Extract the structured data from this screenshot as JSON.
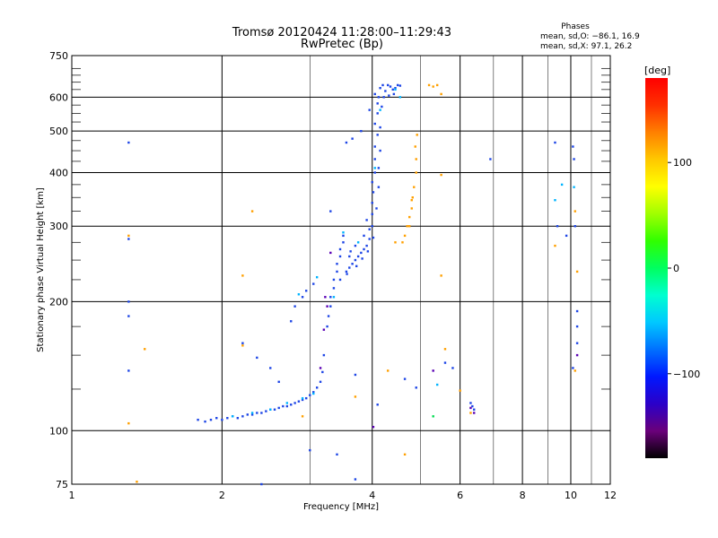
{
  "chart_data": {
    "type": "scatter",
    "title": "Tromsø 20120424 11:28:00–11:29:43",
    "subtitle": "RwPretec (Bp)",
    "xlabel": "Frequency [MHz]",
    "ylabel": "Stationary phase Virtual Height [km]",
    "x_scale": "log",
    "y_scale": "log",
    "xlim": [
      1,
      12
    ],
    "ylim": [
      75,
      750
    ],
    "x_ticks": [
      1,
      2,
      4,
      6,
      8,
      10,
      12
    ],
    "x_tick_labels": [
      "1",
      "2",
      "4",
      "6",
      "8",
      "10",
      "12"
    ],
    "x_grid": [
      2,
      4,
      6,
      8,
      10
    ],
    "x_minor_grid": [
      3,
      5,
      7,
      9,
      11
    ],
    "y_ticks": [
      75,
      100,
      200,
      300,
      400,
      500,
      600,
      750
    ],
    "y_tick_labels": [
      "75",
      "100",
      "200",
      "300",
      "400",
      "500",
      "600",
      "750"
    ],
    "y_grid": [
      100,
      200,
      300,
      400,
      500,
      600
    ],
    "y_minor_grid": [
      125,
      150,
      175,
      225,
      250,
      275,
      325,
      350,
      375,
      425,
      450,
      475,
      525,
      550,
      575,
      625,
      650,
      675,
      700
    ],
    "grid": true,
    "stats": {
      "heading": "Phases",
      "line1": "mean, sd,O: −86.1, 16.9",
      "line2": "mean, sd,X:  97.1, 26.2"
    },
    "colorbar": {
      "label": "[deg]",
      "range": [
        -180,
        180
      ],
      "ticks": [
        100,
        0,
        -100
      ],
      "tick_labels": [
        "100",
        "0",
        "−100"
      ],
      "colors": [
        "#000000",
        "#6a007a",
        "#2b00c8",
        "#0018ff",
        "#0070ff",
        "#00c8ff",
        "#00ffd0",
        "#00ff60",
        "#30ff00",
        "#a0ff00",
        "#ffff00",
        "#ffc800",
        "#ff8000",
        "#ff3000",
        "#ff0000"
      ]
    },
    "series": [
      {
        "color": "#1e46e6",
        "points": [
          [
            1.79,
            106
          ],
          [
            1.85,
            105
          ],
          [
            1.9,
            106
          ],
          [
            1.95,
            107
          ],
          [
            2.0,
            106
          ],
          [
            2.05,
            107
          ],
          [
            2.1,
            108
          ],
          [
            2.15,
            107
          ],
          [
            2.2,
            108
          ],
          [
            2.25,
            109
          ],
          [
            2.3,
            109
          ],
          [
            2.35,
            110
          ],
          [
            2.4,
            110
          ],
          [
            2.45,
            111
          ],
          [
            2.5,
            112
          ],
          [
            2.55,
            112
          ],
          [
            2.6,
            113
          ],
          [
            2.65,
            114
          ],
          [
            2.7,
            114
          ],
          [
            2.75,
            115
          ],
          [
            2.8,
            116
          ],
          [
            2.85,
            117
          ],
          [
            2.9,
            118
          ],
          [
            2.95,
            119
          ],
          [
            3.0,
            121
          ],
          [
            3.05,
            123
          ],
          [
            3.1,
            126
          ],
          [
            3.15,
            130
          ],
          [
            3.18,
            137
          ],
          [
            3.2,
            150
          ],
          [
            3.25,
            175
          ],
          [
            3.27,
            185
          ],
          [
            3.3,
            195
          ],
          [
            3.3,
            205
          ],
          [
            3.35,
            215
          ],
          [
            3.35,
            225
          ],
          [
            3.4,
            235
          ],
          [
            3.4,
            245
          ],
          [
            3.45,
            255
          ],
          [
            3.45,
            265
          ],
          [
            3.5,
            275
          ],
          [
            3.5,
            285
          ],
          [
            3.45,
            225
          ],
          [
            3.55,
            235
          ],
          [
            3.6,
            240
          ],
          [
            3.6,
            255
          ],
          [
            3.65,
            245
          ],
          [
            3.7,
            250
          ],
          [
            3.75,
            255
          ],
          [
            3.7,
            270
          ],
          [
            3.8,
            260
          ],
          [
            3.85,
            265
          ],
          [
            3.9,
            270
          ],
          [
            3.85,
            285
          ],
          [
            3.95,
            280
          ],
          [
            3.95,
            295
          ],
          [
            4.0,
            300
          ],
          [
            3.9,
            310
          ],
          [
            4.0,
            320
          ],
          [
            4.0,
            340
          ],
          [
            4.02,
            360
          ],
          [
            4.0,
            380
          ],
          [
            4.05,
            400
          ],
          [
            4.05,
            430
          ],
          [
            4.05,
            460
          ],
          [
            4.1,
            490
          ],
          [
            4.05,
            520
          ],
          [
            4.1,
            550
          ],
          [
            4.1,
            580
          ],
          [
            4.05,
            610
          ],
          [
            4.15,
            630
          ],
          [
            4.2,
            640
          ],
          [
            4.25,
            620
          ],
          [
            4.3,
            640
          ],
          [
            4.35,
            635
          ],
          [
            4.4,
            625
          ],
          [
            4.45,
            630
          ],
          [
            4.5,
            640
          ],
          [
            4.55,
            638
          ],
          [
            3.56,
            232
          ],
          [
            3.62,
            262
          ],
          [
            3.72,
            242
          ],
          [
            3.82,
            252
          ],
          [
            3.92,
            262
          ],
          [
            4.02,
            282
          ],
          [
            4.08,
            330
          ],
          [
            4.12,
            370
          ],
          [
            4.12,
            410
          ],
          [
            4.15,
            450
          ],
          [
            4.15,
            510
          ],
          [
            4.18,
            570
          ],
          [
            4.12,
            600
          ],
          [
            4.22,
            600
          ],
          [
            4.32,
            605
          ],
          [
            4.42,
            610
          ],
          [
            1.3,
            470
          ],
          [
            1.3,
            280
          ],
          [
            1.3,
            200
          ],
          [
            1.3,
            185
          ],
          [
            1.3,
            138
          ],
          [
            3.3,
            325
          ],
          [
            3.55,
            470
          ],
          [
            3.65,
            480
          ],
          [
            3.8,
            500
          ],
          [
            3.95,
            560
          ],
          [
            3.7,
            77
          ],
          [
            3.4,
            88
          ],
          [
            2.2,
            160
          ],
          [
            2.35,
            148
          ],
          [
            2.5,
            140
          ],
          [
            2.6,
            130
          ],
          [
            2.75,
            180
          ],
          [
            2.8,
            195
          ],
          [
            2.9,
            205
          ],
          [
            3.05,
            220
          ],
          [
            2.95,
            212
          ],
          [
            3.7,
            135
          ],
          [
            4.1,
            115
          ],
          [
            4.65,
            132
          ],
          [
            4.9,
            126
          ],
          [
            5.6,
            144
          ],
          [
            5.8,
            140
          ],
          [
            6.3,
            116
          ],
          [
            6.35,
            114
          ],
          [
            6.4,
            112
          ],
          [
            6.9,
            430
          ],
          [
            9.3,
            470
          ],
          [
            9.4,
            300
          ],
          [
            9.8,
            285
          ],
          [
            10.1,
            460
          ],
          [
            10.15,
            430
          ],
          [
            10.2,
            300
          ],
          [
            10.3,
            190
          ],
          [
            10.3,
            175
          ],
          [
            10.3,
            160
          ],
          [
            10.1,
            140
          ],
          [
            2.4,
            75
          ],
          [
            3.0,
            90
          ]
        ]
      },
      {
        "color": "#00b4ff",
        "points": [
          [
            2.1,
            108
          ],
          [
            2.3,
            110
          ],
          [
            2.5,
            112
          ],
          [
            2.7,
            116
          ],
          [
            2.9,
            119
          ],
          [
            3.05,
            122
          ],
          [
            3.35,
            205
          ],
          [
            3.5,
            290
          ],
          [
            3.75,
            275
          ],
          [
            4.05,
            410
          ],
          [
            4.15,
            560
          ],
          [
            4.45,
            625
          ],
          [
            4.55,
            600
          ],
          [
            2.85,
            208
          ],
          [
            3.1,
            228
          ],
          [
            9.3,
            345
          ],
          [
            9.6,
            375
          ],
          [
            10.15,
            370
          ],
          [
            5.4,
            128
          ]
        ]
      },
      {
        "color": "#5a00b4",
        "points": [
          [
            3.22,
            205
          ],
          [
            3.25,
            195
          ],
          [
            3.3,
            260
          ],
          [
            3.2,
            172
          ],
          [
            3.15,
            140
          ],
          [
            4.02,
            102
          ],
          [
            5.3,
            138
          ],
          [
            6.3,
            113
          ],
          [
            6.4,
            110
          ],
          [
            10.3,
            150
          ]
        ]
      },
      {
        "color": "#ffa000",
        "points": [
          [
            4.6,
            275
          ],
          [
            4.65,
            285
          ],
          [
            4.7,
            300
          ],
          [
            4.75,
            315
          ],
          [
            4.8,
            330
          ],
          [
            4.82,
            350
          ],
          [
            4.85,
            370
          ],
          [
            4.9,
            400
          ],
          [
            4.9,
            430
          ],
          [
            4.88,
            460
          ],
          [
            4.92,
            490
          ],
          [
            4.75,
            300
          ],
          [
            4.8,
            345
          ],
          [
            5.2,
            640
          ],
          [
            5.3,
            635
          ],
          [
            5.4,
            640
          ],
          [
            5.5,
            610
          ],
          [
            5.5,
            395
          ],
          [
            5.5,
            230
          ],
          [
            5.6,
            155
          ],
          [
            6.0,
            124
          ],
          [
            6.3,
            110
          ],
          [
            1.3,
            285
          ],
          [
            1.4,
            155
          ],
          [
            1.3,
            104
          ],
          [
            2.3,
            325
          ],
          [
            2.2,
            230
          ],
          [
            2.2,
            158
          ],
          [
            2.9,
            108
          ],
          [
            3.7,
            120
          ],
          [
            4.3,
            138
          ],
          [
            4.45,
            275
          ],
          [
            4.65,
            88
          ],
          [
            10.2,
            325
          ],
          [
            10.3,
            235
          ],
          [
            10.2,
            138
          ],
          [
            9.3,
            270
          ],
          [
            1.35,
            76
          ]
        ]
      },
      {
        "color": "#00dc50",
        "points": [
          [
            5.3,
            108
          ]
        ]
      }
    ]
  }
}
